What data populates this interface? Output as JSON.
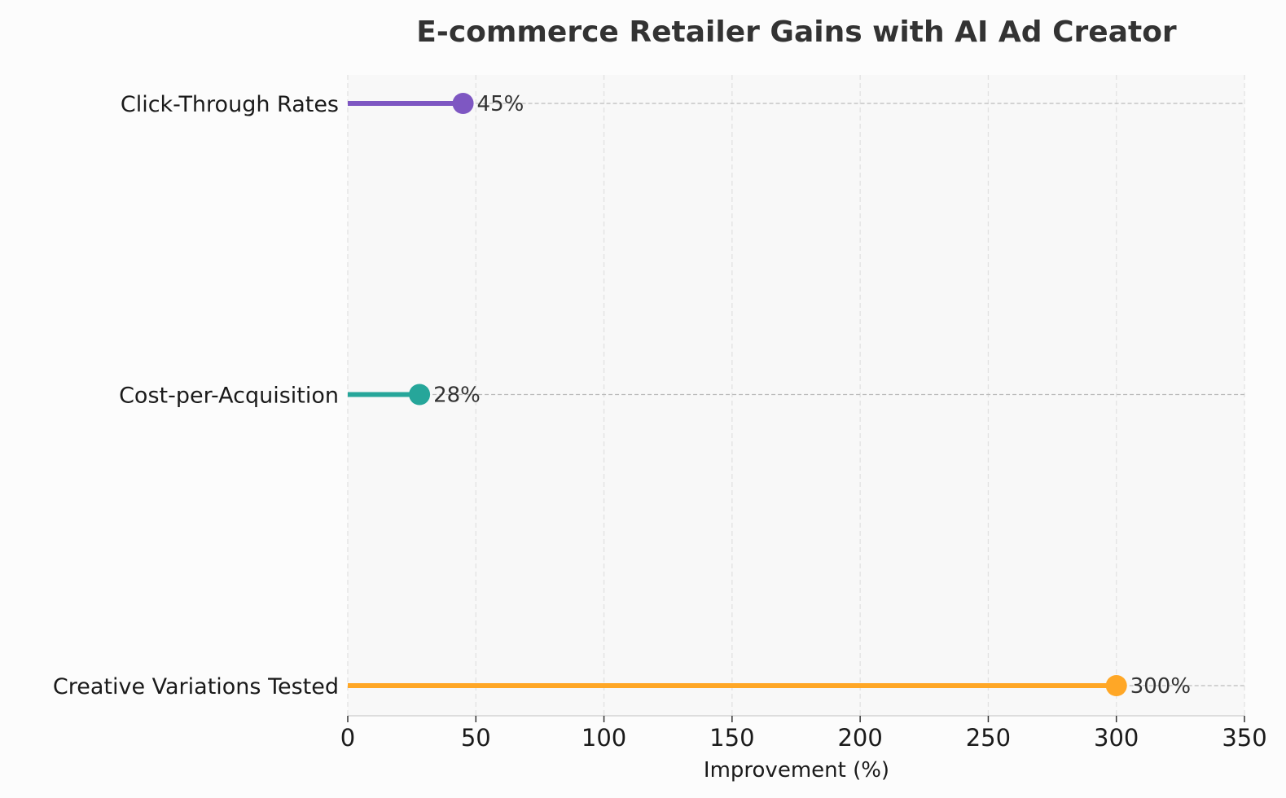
{
  "chart_data": {
    "type": "lollipop",
    "title": "E-commerce Retailer Gains with AI Ad Creator",
    "xlabel": "Improvement (%)",
    "ylabel": "",
    "xlim": [
      0,
      350
    ],
    "xticks": [
      0,
      50,
      100,
      150,
      200,
      250,
      300,
      350
    ],
    "grid": true,
    "categories": [
      "Click-Through Rates",
      "Cost-per-Acquisition",
      "Creative Variations Tested"
    ],
    "values": [
      45,
      28,
      300
    ],
    "value_labels": [
      "45%",
      "28%",
      "300%"
    ],
    "colors": [
      "#7e57c2",
      "#26a69a",
      "#ffa726"
    ]
  }
}
